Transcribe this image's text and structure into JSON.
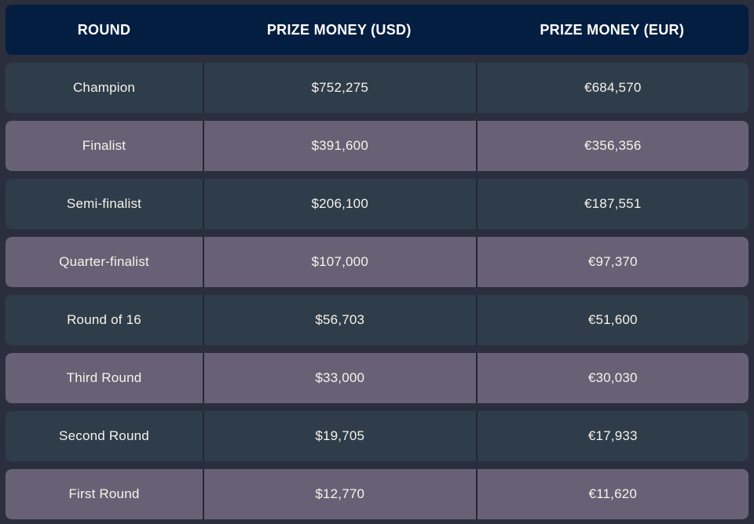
{
  "colors": {
    "page_bg": "#2b2f3d",
    "header_bg": "#041e42",
    "row_dark_bg": "#2f3d4a",
    "row_light_bg": "#686175",
    "divider": "#232733",
    "header_text": "#ffffff",
    "cell_text": "#f6f3ea"
  },
  "chart_data": {
    "type": "table",
    "title": "",
    "columns": [
      "ROUND",
      "PRIZE MONEY (USD)",
      "PRIZE MONEY (EUR)"
    ],
    "rows": [
      {
        "round": "Champion",
        "usd": "$752,275",
        "eur": "€684,570",
        "usd_value": 752275,
        "eur_value": 684570
      },
      {
        "round": "Finalist",
        "usd": "$391,600",
        "eur": "€356,356",
        "usd_value": 391600,
        "eur_value": 356356
      },
      {
        "round": "Semi-finalist",
        "usd": "$206,100",
        "eur": "€187,551",
        "usd_value": 206100,
        "eur_value": 187551
      },
      {
        "round": "Quarter-finalist",
        "usd": "$107,000",
        "eur": "€97,370",
        "usd_value": 107000,
        "eur_value": 97370
      },
      {
        "round": "Round of 16",
        "usd": "$56,703",
        "eur": "€51,600",
        "usd_value": 56703,
        "eur_value": 51600
      },
      {
        "round": "Third Round",
        "usd": "$33,000",
        "eur": "€30,030",
        "usd_value": 33000,
        "eur_value": 30030
      },
      {
        "round": "Second Round",
        "usd": "$19,705",
        "eur": "€17,933",
        "usd_value": 19705,
        "eur_value": 17933
      },
      {
        "round": "First Round",
        "usd": "$12,770",
        "eur": "€11,620",
        "usd_value": 12770,
        "eur_value": 11620
      }
    ],
    "layout": {
      "row_striping": [
        "dark",
        "light"
      ],
      "alignment": "center"
    }
  }
}
